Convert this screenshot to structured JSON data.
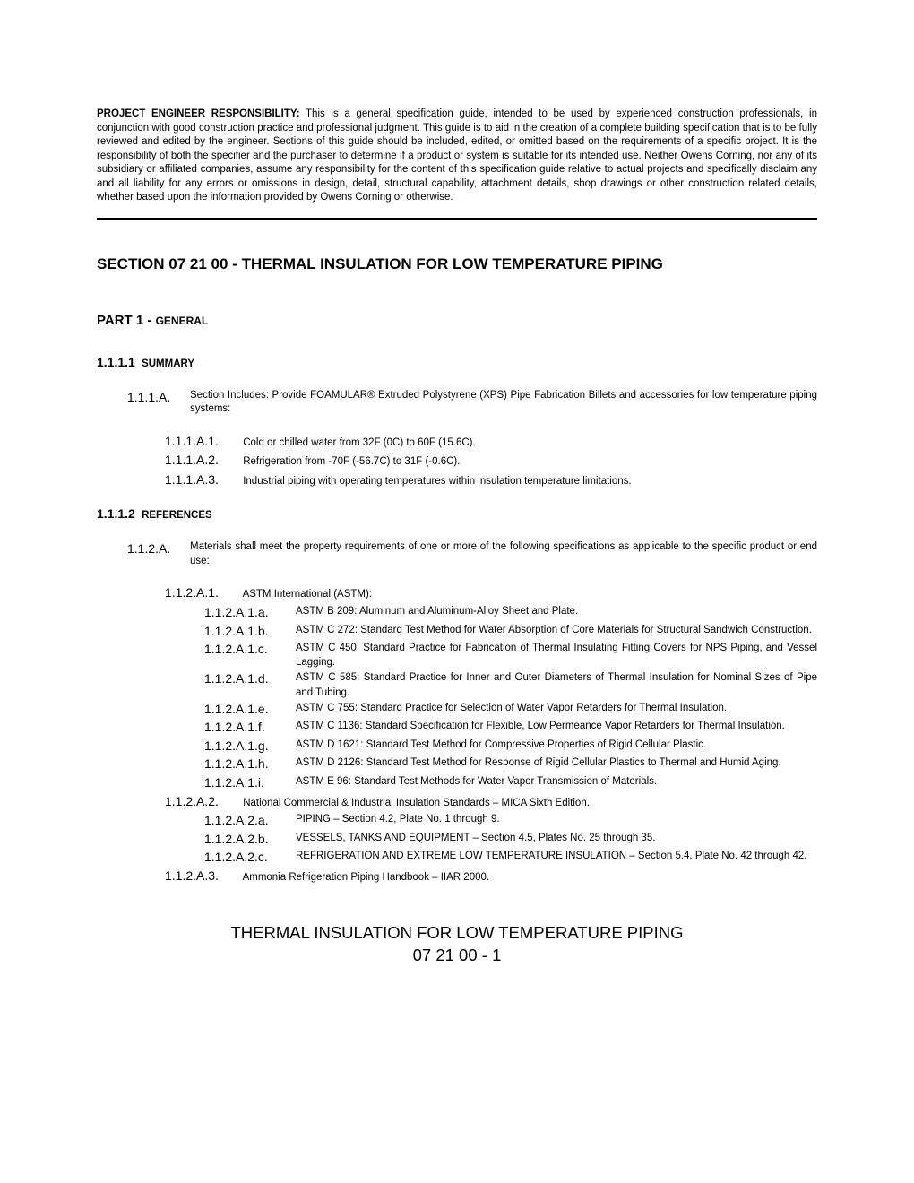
{
  "disclaimer": {
    "label": "PROJECT ENGINEER RESPONSIBILITY:",
    "text": "  This is a general specification guide, intended to be used by experienced construction professionals, in conjunction with good construction practice and professional judgment.  This guide is to aid in the creation of a complete building specification that is to be fully reviewed and edited by the engineer.  Sections of this guide should be included, edited, or omitted based on the requirements of a specific project.  It is the responsibility of both the specifier and the purchaser to determine if a product or system is suitable for its intended use.  Neither Owens Corning, nor any of its subsidiary or affiliated companies, assume any responsibility for the content of this specification guide relative to actual projects and specifically disclaim any and all liability for any errors or omissions in design, detail, structural capability, attachment details, shop drawings or other construction related details, whether based upon the information provided by Owens Corning or otherwise."
  },
  "sectionTitle": "SECTION 07 21 00 - THERMAL INSULATION FOR LOW TEMPERATURE PIPING",
  "partTitle": {
    "main": "PART 1 - ",
    "suffix": "GENERAL"
  },
  "s111": {
    "num": "1.1.1.1",
    "label": "SUMMARY",
    "a": {
      "num": "1.1.1.A.",
      "text": "Section Includes:  Provide FOAMULAR® Extruded Polystyrene (XPS) Pipe Fabrication Billets and accessories for low temperature piping systems:",
      "items": [
        {
          "num": "1.1.1.A.1.",
          "text": "Cold or chilled water from 32F (0C) to 60F (15.6C)."
        },
        {
          "num": "1.1.1.A.2.",
          "text": "Refrigeration from -70F (-56.7C) to 31F (-0.6C)."
        },
        {
          "num": "1.1.1.A.3.",
          "text": "Industrial piping with operating temperatures within insulation temperature limitations."
        }
      ]
    }
  },
  "s112": {
    "num": "1.1.1.2",
    "label": "REFERENCES",
    "a": {
      "num": "1.1.2.A.",
      "text": "Materials shall meet the property requirements of one or more of the following specifications as applicable to the specific product or end use:",
      "g1": {
        "num": "1.1.2.A.1.",
        "text": "ASTM International (ASTM):",
        "items": [
          {
            "num": "1.1.2.A.1.a.",
            "text": "ASTM B 209:  Aluminum and Aluminum-Alloy Sheet and Plate."
          },
          {
            "num": "1.1.2.A.1.b.",
            "text": "ASTM C 272:  Standard Test Method for Water Absorption of Core Materials for Structural Sandwich Construction."
          },
          {
            "num": "1.1.2.A.1.c.",
            "text": "ASTM C 450:  Standard Practice for Fabrication of Thermal Insulating Fitting Covers for NPS Piping, and Vessel Lagging."
          },
          {
            "num": "1.1.2.A.1.d.",
            "text": "ASTM C 585:  Standard Practice for Inner and Outer Diameters of Thermal Insulation for Nominal Sizes of Pipe and Tubing."
          },
          {
            "num": "1.1.2.A.1.e.",
            "text": "ASTM C 755:  Standard Practice for Selection of Water Vapor Retarders for Thermal Insulation."
          },
          {
            "num": "1.1.2.A.1.f.",
            "text": "ASTM C 1136:  Standard Specification for Flexible, Low Permeance Vapor Retarders for Thermal Insulation."
          },
          {
            "num": "1.1.2.A.1.g.",
            "text": "ASTM D 1621:  Standard Test Method for Compressive Properties of Rigid Cellular Plastic."
          },
          {
            "num": "1.1.2.A.1.h.",
            "text": "ASTM D 2126:  Standard Test Method for Response of Rigid Cellular Plastics to Thermal and Humid Aging."
          },
          {
            "num": "1.1.2.A.1.i.",
            "text": "ASTM E 96:  Standard Test Methods for Water Vapor Transmission of Materials."
          }
        ]
      },
      "g2": {
        "num": "1.1.2.A.2.",
        "text": "National Commercial & Industrial Insulation Standards – MICA Sixth Edition.",
        "items": [
          {
            "num": "1.1.2.A.2.a.",
            "text": "PIPING – Section 4.2, Plate No. 1 through 9."
          },
          {
            "num": "1.1.2.A.2.b.",
            "text": "VESSELS, TANKS AND EQUIPMENT – Section 4.5, Plates No. 25 through 35."
          },
          {
            "num": "1.1.2.A.2.c.",
            "text": "REFRIGERATION AND EXTREME LOW TEMPERATURE INSULATION – Section 5.4, Plate No. 42 through 42."
          }
        ]
      },
      "g3": {
        "num": "1.1.2.A.3.",
        "text": "Ammonia Refrigeration Piping Handbook – IIAR 2000."
      }
    }
  },
  "footer": {
    "line1": "THERMAL INSULATION FOR LOW TEMPERATURE PIPING",
    "line2": "07 21 00 - 1"
  }
}
